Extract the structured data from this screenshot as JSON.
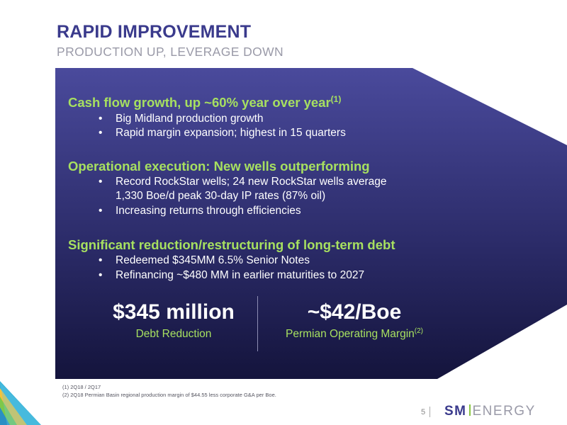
{
  "header": {
    "title": "RAPID IMPROVEMENT",
    "subtitle": "PRODUCTION UP, LEVERAGE DOWN"
  },
  "sections": [
    {
      "heading": "Cash flow growth, up ~60% year over year",
      "heading_sup": "(1)",
      "bullets": [
        "Big Midland production growth",
        "Rapid margin expansion; highest in 15 quarters"
      ]
    },
    {
      "heading": "Operational execution: New wells outperforming",
      "bullets": [
        "Record RockStar wells; 24 new RockStar wells average",
        "1,330 Boe/d peak 30-day IP rates (87% oil)",
        "Increasing returns through efficiencies"
      ]
    },
    {
      "heading": "Significant reduction/restructuring of long-term debt",
      "bullets": [
        "Redeemed $345MM 6.5% Senior Notes",
        "Refinancing ~$480 MM in earlier maturities to 2027"
      ]
    }
  ],
  "bullet_symbol": "•",
  "stats": [
    {
      "value": "$345 million",
      "label": "Debt Reduction"
    },
    {
      "value": "~$42/Boe",
      "label": "Permian Operating Margin",
      "label_sup": "(2)"
    }
  ],
  "footnotes": [
    "(1)   2Q18 / 2Q17",
    "(2)   2Q18 Permian Basin regional production margin of $44.55 less corporate G&A per Boe."
  ],
  "footer": {
    "page_number": "5",
    "logo_sm": "SM",
    "logo_energy": "ENERGY"
  },
  "colors": {
    "title": "#3a3a8c",
    "subtitle": "#9a9aa8",
    "heading_green": "#a7e060",
    "panel_top": "#4a4a9a",
    "panel_bottom": "#14143a"
  }
}
